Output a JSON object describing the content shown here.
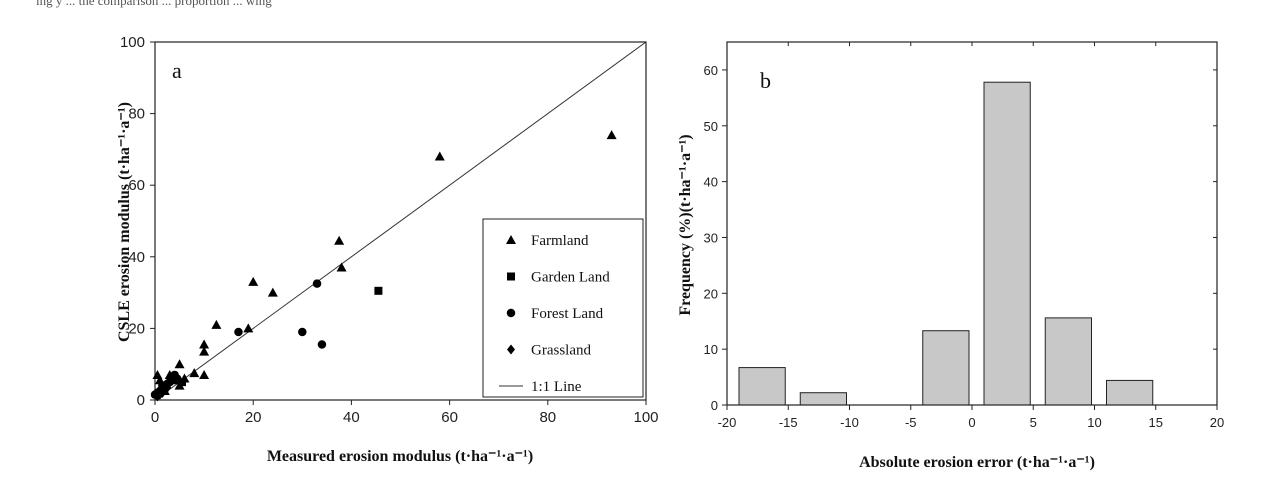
{
  "page": {
    "top_text": "ing y ... the comparison ... proportion ... wing"
  },
  "chart_data": [
    {
      "type": "scatter",
      "panel_label": "a",
      "title": "",
      "xlabel": "Measured erosion modulus",
      "xlabel_unit": "(t·ha⁻¹·a⁻¹)",
      "ylabel": "CSLE erosion modulus",
      "ylabel_unit": "(t·ha⁻¹·a⁻¹)",
      "xlim": [
        0,
        100
      ],
      "ylim": [
        0,
        100
      ],
      "xticks": [
        0,
        20,
        40,
        60,
        80,
        100
      ],
      "yticks": [
        0,
        20,
        40,
        60,
        80,
        100
      ],
      "grid": false,
      "legend_position": "bottom-right",
      "reference_line": {
        "name": "1:1 Line",
        "points": [
          [
            0,
            0
          ],
          [
            100,
            100
          ]
        ]
      },
      "series": [
        {
          "name": "Farmland",
          "marker": "triangle",
          "points": [
            [
              0.5,
              7
            ],
            [
              1,
              5.5
            ],
            [
              1.5,
              3
            ],
            [
              2,
              2.5
            ],
            [
              3,
              7
            ],
            [
              4,
              5.5
            ],
            [
              5,
              10
            ],
            [
              5,
              4
            ],
            [
              6,
              6
            ],
            [
              8,
              7.5
            ],
            [
              10,
              7
            ],
            [
              10,
              15.5
            ],
            [
              10,
              13.5
            ],
            [
              12.5,
              21
            ],
            [
              19,
              20
            ],
            [
              20,
              33
            ],
            [
              24,
              30
            ],
            [
              37.5,
              44.5
            ],
            [
              38,
              37
            ],
            [
              58,
              68
            ],
            [
              93,
              74
            ]
          ]
        },
        {
          "name": "Garden Land",
          "marker": "square",
          "points": [
            [
              5.5,
              5
            ],
            [
              45.5,
              30.5
            ]
          ]
        },
        {
          "name": "Forest Land",
          "marker": "circle",
          "points": [
            [
              0,
              1.5
            ],
            [
              0.5,
              2
            ],
            [
              1,
              2.5
            ],
            [
              1.5,
              4
            ],
            [
              2,
              3
            ],
            [
              2.5,
              4.5
            ],
            [
              3,
              5
            ],
            [
              3.5,
              6.5
            ],
            [
              4,
              7
            ],
            [
              4.5,
              6
            ],
            [
              17,
              19
            ],
            [
              30,
              19
            ],
            [
              33,
              32.5
            ],
            [
              34,
              15.5
            ]
          ]
        },
        {
          "name": "Grassland",
          "marker": "diamond",
          "points": [
            [
              0.5,
              1
            ],
            [
              1,
              1.5
            ],
            [
              1.5,
              2
            ],
            [
              2,
              4
            ],
            [
              2.5,
              3.5
            ]
          ]
        }
      ]
    },
    {
      "type": "bar",
      "panel_label": "b",
      "title": "",
      "xlabel": "Absolute erosion error",
      "xlabel_unit": "(t·ha⁻¹·a⁻¹)",
      "ylabel": "Frequency (%)",
      "ylabel_unit": "(t·ha⁻¹·a⁻¹)",
      "xlim": [
        -20,
        20
      ],
      "ylim": [
        0,
        65
      ],
      "xticks": [
        -20,
        -15,
        -10,
        -5,
        0,
        5,
        10,
        15,
        20
      ],
      "yticks": [
        0,
        10,
        20,
        30,
        40,
        50,
        60
      ],
      "bar_color": "#c8c8c8",
      "grid": false,
      "bins": [
        {
          "from": -20,
          "to": -15,
          "value": 6.7
        },
        {
          "from": -15,
          "to": -10,
          "value": 2.2
        },
        {
          "from": -5,
          "to": 0,
          "value": 13.3
        },
        {
          "from": 0,
          "to": 5,
          "value": 57.8
        },
        {
          "from": 5,
          "to": 10,
          "value": 15.6
        },
        {
          "from": 10,
          "to": 15,
          "value": 4.4
        }
      ]
    }
  ]
}
